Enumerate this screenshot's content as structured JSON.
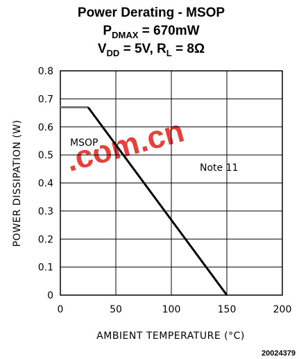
{
  "chart_data": {
    "type": "line",
    "title_lines": [
      "Power Derating - MSOP",
      "P_DMAX = 670mW",
      "V_DD = 5V, R_L = 8Ω"
    ],
    "xlabel": "AMBIENT TEMPERATURE (°C)",
    "ylabel": "POWER DISSIPATION (W)",
    "xlim": [
      0,
      200
    ],
    "ylim": [
      0,
      0.8
    ],
    "x_ticks": [
      "0",
      "50",
      "100",
      "150",
      "200"
    ],
    "y_ticks": [
      "0",
      "0.1",
      "0.2",
      "0.3",
      "0.4",
      "0.5",
      "0.6",
      "0.7",
      "0.8"
    ],
    "grid": true,
    "series": [
      {
        "name": "MSOP",
        "x": [
          0,
          25,
          150
        ],
        "y": [
          0.67,
          0.67,
          0
        ]
      }
    ],
    "annotations": [
      "MSOP",
      "Note 11"
    ],
    "figure_id": "20024379",
    "watermark": ".com.cn"
  }
}
